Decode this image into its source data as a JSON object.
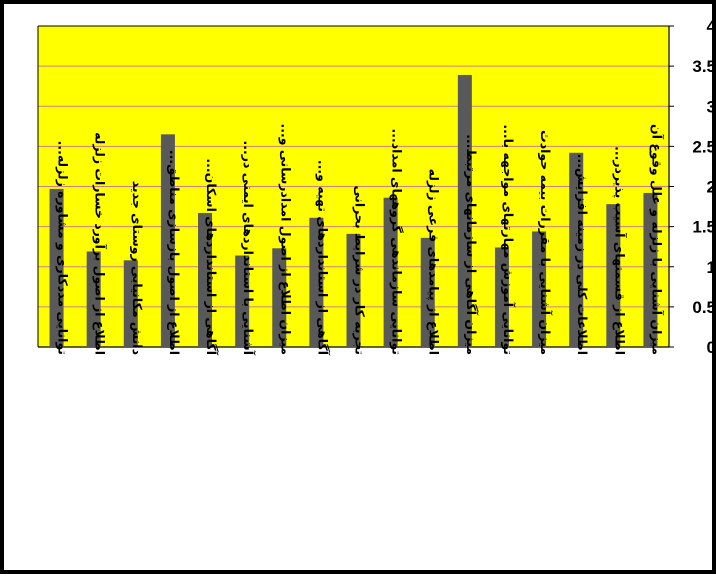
{
  "chart_data": {
    "type": "bar",
    "title": "",
    "xlabel": "",
    "ylabel": "",
    "ylim": [
      0,
      4
    ],
    "yticks": [
      "0",
      "0.5",
      "1",
      "1.5",
      "2",
      "2.5",
      "3",
      "3.5",
      "4"
    ],
    "grid": true,
    "legend": "none",
    "categories": [
      "توانایی مددکاری و مشاوره زلزله...",
      "اطلاع از اصول برآورد خسارات زلزله",
      "دانش مکانیابی روستای جدید",
      "اطلاع از اصول بازسازی مناطق...",
      "آگاهی از استانداردهای اسکان...",
      "آشنایی با استانداردهای ایمنی در...",
      "میزان اطلاع از اصول امدادرسانی و...",
      "آگاهی از استانداردهای تهیه و...",
      "تجربه کار در شرایط بحرانی",
      "توانایی سازماندهی گروههای امداد...",
      "اطلاع از پیامدهای فرعی زلزله",
      "میزان آگاهی از سازمانهای مرتبط...",
      "توانایی آموزش مهارتهای مواجهه با...",
      "میزان آشنایی با مقررات بیمه حوادث",
      "اطلاعات کلی در زمینه افزایش...",
      "اطلاع از قسمتهای آسیب پذیردر...",
      "میزان آشنایی با زلزله و علل وقوع آن"
    ],
    "values": [
      1.97,
      1.19,
      1.08,
      2.65,
      1.67,
      1.14,
      1.23,
      1.61,
      1.41,
      1.86,
      1.36,
      3.39,
      1.24,
      1.44,
      2.42,
      1.78,
      1.92
    ]
  },
  "colors": {
    "plot_background": "#ffff00",
    "bar": "#595959",
    "gridline": "#d08080",
    "frame": "#000000"
  }
}
